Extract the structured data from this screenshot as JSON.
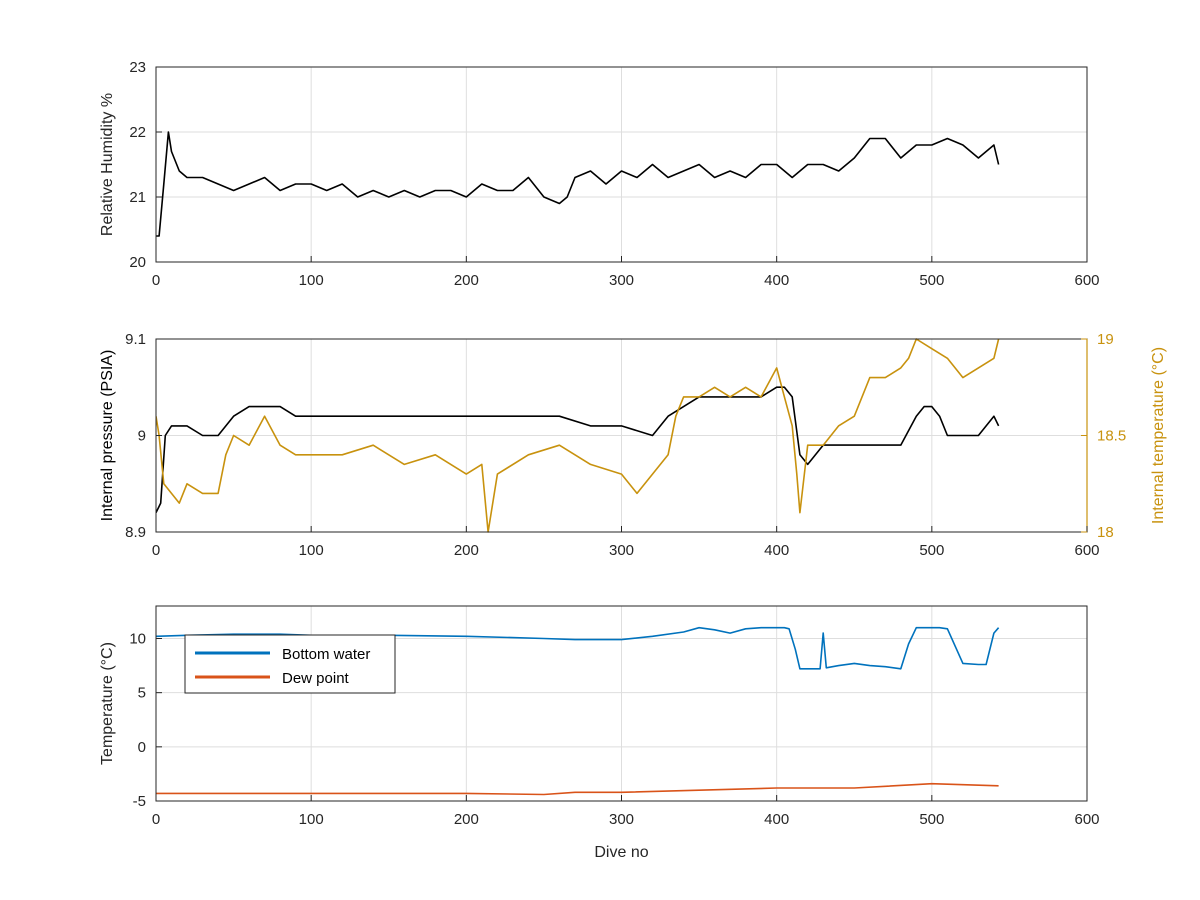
{
  "chart_data": [
    {
      "type": "line",
      "title": "",
      "xlabel": "",
      "ylabel": "Relative Humidity %",
      "xlim": [
        0,
        600
      ],
      "ylim": [
        20,
        23
      ],
      "xticks": [
        0,
        100,
        200,
        300,
        400,
        500,
        600
      ],
      "yticks": [
        20,
        21,
        22,
        23
      ],
      "grid": true,
      "series": [
        {
          "color": "#000000",
          "x": [
            0,
            2,
            5,
            8,
            10,
            15,
            20,
            30,
            40,
            50,
            60,
            70,
            80,
            90,
            100,
            110,
            120,
            130,
            140,
            150,
            160,
            170,
            180,
            190,
            200,
            210,
            220,
            230,
            240,
            250,
            260,
            265,
            270,
            280,
            290,
            300,
            310,
            320,
            330,
            340,
            350,
            360,
            370,
            380,
            390,
            400,
            410,
            420,
            430,
            440,
            450,
            460,
            470,
            480,
            490,
            500,
            510,
            520,
            530,
            540,
            543
          ],
          "y": [
            20.4,
            20.4,
            21.2,
            22.0,
            21.7,
            21.4,
            21.3,
            21.3,
            21.2,
            21.1,
            21.2,
            21.3,
            21.1,
            21.2,
            21.2,
            21.1,
            21.2,
            21.0,
            21.1,
            21.0,
            21.1,
            21.0,
            21.1,
            21.1,
            21.0,
            21.2,
            21.1,
            21.1,
            21.3,
            21.0,
            20.9,
            21.0,
            21.3,
            21.4,
            21.2,
            21.4,
            21.3,
            21.5,
            21.3,
            21.4,
            21.5,
            21.3,
            21.4,
            21.3,
            21.5,
            21.5,
            21.3,
            21.5,
            21.5,
            21.4,
            21.6,
            21.9,
            21.9,
            21.6,
            21.8,
            21.8,
            21.9,
            21.8,
            21.6,
            21.8,
            21.5
          ]
        }
      ]
    },
    {
      "type": "line",
      "title": "",
      "xlabel": "",
      "ylabel": "Internal pressure (PSIA)",
      "ylabel_right": "Internal temperature (°C)",
      "xlim": [
        0,
        600
      ],
      "ylim": [
        8.9,
        9.1
      ],
      "ylim_right": [
        18,
        19
      ],
      "xticks": [
        0,
        100,
        200,
        300,
        400,
        500,
        600
      ],
      "yticks": [
        8.9,
        9,
        9.1
      ],
      "yticks_right": [
        18,
        18.5,
        19
      ],
      "yticklabels": [
        "8.9",
        "9",
        "9.1"
      ],
      "yticklabels_right": [
        "18",
        "18.5",
        "19"
      ],
      "grid": true,
      "series": [
        {
          "axis": "left",
          "color": "#000000",
          "x": [
            0,
            3,
            6,
            10,
            20,
            30,
            40,
            50,
            60,
            70,
            80,
            90,
            100,
            120,
            140,
            160,
            180,
            200,
            220,
            240,
            260,
            280,
            300,
            320,
            330,
            340,
            350,
            360,
            370,
            380,
            390,
            400,
            405,
            410,
            415,
            420,
            430,
            440,
            450,
            460,
            470,
            480,
            490,
            495,
            500,
            505,
            510,
            520,
            530,
            540,
            543
          ],
          "y": [
            8.92,
            8.93,
            9.0,
            9.01,
            9.01,
            9.0,
            9.0,
            9.02,
            9.03,
            9.03,
            9.03,
            9.02,
            9.02,
            9.02,
            9.02,
            9.02,
            9.02,
            9.02,
            9.02,
            9.02,
            9.02,
            9.01,
            9.01,
            9.0,
            9.02,
            9.03,
            9.04,
            9.04,
            9.04,
            9.04,
            9.04,
            9.05,
            9.05,
            9.04,
            8.98,
            8.97,
            8.99,
            8.99,
            8.99,
            8.99,
            8.99,
            8.99,
            9.02,
            9.03,
            9.03,
            9.02,
            9.0,
            9.0,
            9.0,
            9.02,
            9.01
          ]
        },
        {
          "axis": "right",
          "color": "#C8920E",
          "x": [
            0,
            2,
            5,
            10,
            15,
            20,
            30,
            40,
            45,
            50,
            60,
            70,
            80,
            90,
            100,
            120,
            140,
            160,
            180,
            200,
            210,
            214,
            220,
            240,
            260,
            280,
            300,
            310,
            320,
            330,
            335,
            340,
            350,
            360,
            370,
            380,
            390,
            400,
            405,
            410,
            413,
            415,
            420,
            430,
            440,
            450,
            460,
            470,
            480,
            485,
            490,
            500,
            510,
            520,
            530,
            540,
            543
          ],
          "y": [
            18.6,
            18.5,
            18.25,
            18.2,
            18.15,
            18.25,
            18.2,
            18.2,
            18.4,
            18.5,
            18.45,
            18.6,
            18.45,
            18.4,
            18.4,
            18.4,
            18.45,
            18.35,
            18.4,
            18.3,
            18.35,
            18.0,
            18.3,
            18.4,
            18.45,
            18.35,
            18.3,
            18.2,
            18.3,
            18.4,
            18.6,
            18.7,
            18.7,
            18.75,
            18.7,
            18.75,
            18.7,
            18.85,
            18.7,
            18.55,
            18.3,
            18.1,
            18.45,
            18.45,
            18.55,
            18.6,
            18.8,
            18.8,
            18.85,
            18.9,
            19.0,
            18.95,
            18.9,
            18.8,
            18.85,
            18.9,
            19.0
          ]
        }
      ]
    },
    {
      "type": "line",
      "title": "",
      "xlabel": "Dive no",
      "ylabel": "Temperature (°C)",
      "xlim": [
        0,
        600
      ],
      "ylim": [
        -5,
        13
      ],
      "xticks": [
        0,
        100,
        200,
        300,
        400,
        500,
        600
      ],
      "yticks": [
        -5,
        0,
        5,
        10
      ],
      "legend_position": "top-left",
      "grid": true,
      "series": [
        {
          "name": "Bottom water",
          "color": "#0072BD",
          "x": [
            0,
            20,
            50,
            80,
            100,
            150,
            200,
            250,
            270,
            300,
            320,
            340,
            350,
            360,
            370,
            380,
            390,
            400,
            405,
            408,
            412,
            415,
            420,
            428,
            430,
            432,
            440,
            450,
            460,
            470,
            480,
            485,
            490,
            495,
            500,
            505,
            510,
            520,
            530,
            535,
            540,
            543
          ],
          "y": [
            10.2,
            10.3,
            10.4,
            10.4,
            10.3,
            10.3,
            10.2,
            10.0,
            9.9,
            9.9,
            10.2,
            10.6,
            11.0,
            10.8,
            10.5,
            10.9,
            11.0,
            11.0,
            11.0,
            10.9,
            9.0,
            7.2,
            7.2,
            7.2,
            10.5,
            7.3,
            7.5,
            7.7,
            7.5,
            7.4,
            7.2,
            9.5,
            11.0,
            11.0,
            11.0,
            11.0,
            10.9,
            7.7,
            7.6,
            7.6,
            10.5,
            11.0
          ]
        },
        {
          "name": "Dew point",
          "color": "#D95319",
          "x": [
            0,
            50,
            100,
            150,
            200,
            250,
            270,
            300,
            350,
            400,
            450,
            500,
            543
          ],
          "y": [
            -4.3,
            -4.3,
            -4.3,
            -4.3,
            -4.3,
            -4.4,
            -4.2,
            -4.2,
            -4.0,
            -3.8,
            -3.8,
            -3.4,
            -3.6
          ]
        }
      ]
    }
  ]
}
